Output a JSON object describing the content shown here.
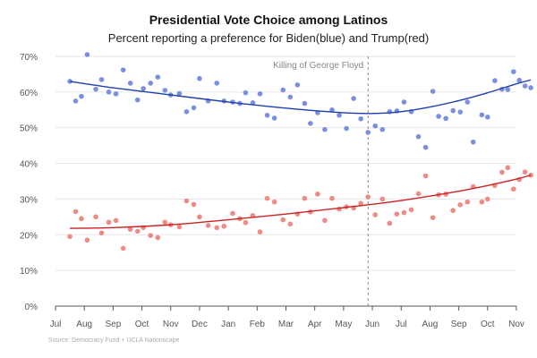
{
  "chart_data": {
    "type": "scatter",
    "title": "Presidential Vote Choice among Latinos",
    "subtitle": "Percent reporting a preference for Biden(blue) and Trump(red)",
    "source": "Source: Democracy Fund + UCLA Nationscape",
    "xlabel": "",
    "ylabel": "",
    "x_unit": "months since Jul 1, 2019",
    "xlim": [
      0,
      16
    ],
    "ylim": [
      0,
      70
    ],
    "x_ticks": [
      {
        "x": 0,
        "label": "Jul"
      },
      {
        "x": 1,
        "label": "Aug"
      },
      {
        "x": 2,
        "label": "Sep"
      },
      {
        "x": 3,
        "label": "Oct"
      },
      {
        "x": 4,
        "label": "Nov"
      },
      {
        "x": 5,
        "label": "Dec"
      },
      {
        "x": 6,
        "label": "Jan"
      },
      {
        "x": 7,
        "label": "Feb"
      },
      {
        "x": 8,
        "label": "Mar"
      },
      {
        "x": 9,
        "label": "Apr"
      },
      {
        "x": 10,
        "label": "May"
      },
      {
        "x": 11,
        "label": "Jun"
      },
      {
        "x": 12,
        "label": "Jul"
      },
      {
        "x": 13,
        "label": "Aug"
      },
      {
        "x": 14,
        "label": "Sep"
      },
      {
        "x": 15,
        "label": "Oct"
      },
      {
        "x": 16,
        "label": "Nov"
      }
    ],
    "y_ticks": [
      {
        "y": 0,
        "label": "0%"
      },
      {
        "y": 10,
        "label": "10%"
      },
      {
        "y": 20,
        "label": "20%"
      },
      {
        "y": 30,
        "label": "30%"
      },
      {
        "y": 40,
        "label": "40%"
      },
      {
        "y": 50,
        "label": "50%"
      },
      {
        "y": 60,
        "label": "60%"
      },
      {
        "y": 70,
        "label": "70%"
      }
    ],
    "grid": true,
    "annotation": {
      "x": 10.85,
      "label": "Killing of George Floyd"
    },
    "series": [
      {
        "name": "Biden",
        "color": "#7b8fe0",
        "trend_color": "#1f3fb0",
        "points": [
          [
            0.5,
            63
          ],
          [
            0.7,
            57.5
          ],
          [
            0.9,
            58.8
          ],
          [
            1.1,
            70.5
          ],
          [
            1.4,
            60.8
          ],
          [
            1.6,
            63.5
          ],
          [
            1.85,
            60
          ],
          [
            2.1,
            59.5
          ],
          [
            2.35,
            66.2
          ],
          [
            2.6,
            62.5
          ],
          [
            2.85,
            57.8
          ],
          [
            3.05,
            61
          ],
          [
            3.3,
            62.5
          ],
          [
            3.55,
            64.2
          ],
          [
            3.8,
            60.5
          ],
          [
            4.0,
            59.2
          ],
          [
            4.3,
            59.6
          ],
          [
            4.55,
            54.5
          ],
          [
            4.8,
            55.6
          ],
          [
            5.0,
            63.8
          ],
          [
            5.3,
            57.5
          ],
          [
            5.6,
            62.5
          ],
          [
            5.85,
            57.5
          ],
          [
            6.15,
            57.2
          ],
          [
            6.4,
            56.8
          ],
          [
            6.6,
            59.8
          ],
          [
            6.85,
            57
          ],
          [
            7.1,
            59.5
          ],
          [
            7.35,
            53.5
          ],
          [
            7.6,
            52.7
          ],
          [
            7.9,
            60.6
          ],
          [
            8.15,
            58.6
          ],
          [
            8.4,
            62
          ],
          [
            8.65,
            56.8
          ],
          [
            8.85,
            51.2
          ],
          [
            9.1,
            54.2
          ],
          [
            9.35,
            49.5
          ],
          [
            9.6,
            55
          ],
          [
            9.85,
            53.5
          ],
          [
            10.1,
            49.8
          ],
          [
            10.35,
            58.2
          ],
          [
            10.6,
            52.5
          ],
          [
            10.85,
            48.7
          ],
          [
            11.1,
            50.5
          ],
          [
            11.35,
            49.5
          ],
          [
            11.6,
            54.5
          ],
          [
            11.85,
            54.7
          ],
          [
            12.1,
            57.2
          ],
          [
            12.35,
            54.5
          ],
          [
            12.6,
            47.5
          ],
          [
            12.85,
            44.5
          ],
          [
            13.1,
            60.2
          ],
          [
            13.3,
            53.2
          ],
          [
            13.55,
            52.6
          ],
          [
            13.8,
            54.8
          ],
          [
            14.05,
            54.4
          ],
          [
            14.3,
            57.2
          ],
          [
            14.5,
            46
          ],
          [
            14.8,
            53.6
          ],
          [
            15.0,
            53
          ],
          [
            15.25,
            63.2
          ],
          [
            15.5,
            60.8
          ],
          [
            15.7,
            60.7
          ],
          [
            15.9,
            65.7
          ],
          [
            16.1,
            63.3
          ],
          [
            16.3,
            61.7
          ],
          [
            16.5,
            61.2
          ]
        ],
        "trend": [
          [
            0.5,
            63
          ],
          [
            2.0,
            61.2
          ],
          [
            4.0,
            59.2
          ],
          [
            6.0,
            57.2
          ],
          [
            8.0,
            55.5
          ],
          [
            10.0,
            54.2
          ],
          [
            11.0,
            54
          ],
          [
            12.0,
            54.5
          ],
          [
            13.0,
            55.8
          ],
          [
            14.0,
            57.6
          ],
          [
            15.0,
            59.8
          ],
          [
            16.0,
            62.3
          ],
          [
            16.5,
            63.4
          ]
        ]
      },
      {
        "name": "Trump",
        "color": "#ef8a85",
        "trend_color": "#cc2222",
        "points": [
          [
            0.5,
            19.5
          ],
          [
            0.7,
            26.5
          ],
          [
            0.9,
            24.5
          ],
          [
            1.1,
            18.5
          ],
          [
            1.4,
            25
          ],
          [
            1.6,
            20.5
          ],
          [
            1.85,
            23.5
          ],
          [
            2.1,
            24
          ],
          [
            2.35,
            16.2
          ],
          [
            2.6,
            21.5
          ],
          [
            2.85,
            21
          ],
          [
            3.05,
            22
          ],
          [
            3.3,
            19.8
          ],
          [
            3.55,
            19.2
          ],
          [
            3.8,
            23.5
          ],
          [
            4.0,
            22.8
          ],
          [
            4.3,
            22.2
          ],
          [
            4.55,
            29.5
          ],
          [
            4.8,
            28.5
          ],
          [
            5.0,
            25
          ],
          [
            5.3,
            22.6
          ],
          [
            5.6,
            22
          ],
          [
            5.85,
            22.4
          ],
          [
            6.15,
            26
          ],
          [
            6.4,
            24.5
          ],
          [
            6.6,
            23.4
          ],
          [
            6.85,
            25.4
          ],
          [
            7.1,
            20.8
          ],
          [
            7.35,
            30.2
          ],
          [
            7.6,
            29.2
          ],
          [
            7.9,
            24.2
          ],
          [
            8.15,
            23
          ],
          [
            8.4,
            25.8
          ],
          [
            8.65,
            30.2
          ],
          [
            8.85,
            26.4
          ],
          [
            9.1,
            31.4
          ],
          [
            9.35,
            24
          ],
          [
            9.6,
            30.2
          ],
          [
            9.85,
            27.2
          ],
          [
            10.1,
            27.8
          ],
          [
            10.35,
            27.5
          ],
          [
            10.6,
            28.8
          ],
          [
            10.85,
            30.6
          ],
          [
            11.1,
            25.6
          ],
          [
            11.35,
            30
          ],
          [
            11.6,
            23.2
          ],
          [
            11.85,
            25.8
          ],
          [
            12.1,
            26.2
          ],
          [
            12.35,
            27
          ],
          [
            12.6,
            31.5
          ],
          [
            12.85,
            36.5
          ],
          [
            13.1,
            24.8
          ],
          [
            13.3,
            31.2
          ],
          [
            13.55,
            31.4
          ],
          [
            13.8,
            26.8
          ],
          [
            14.05,
            28.4
          ],
          [
            14.3,
            29.2
          ],
          [
            14.5,
            33.5
          ],
          [
            14.8,
            29.2
          ],
          [
            15.0,
            30
          ],
          [
            15.25,
            33.8
          ],
          [
            15.5,
            37.5
          ],
          [
            15.7,
            38.8
          ],
          [
            15.9,
            32.8
          ],
          [
            16.1,
            35.5
          ],
          [
            16.3,
            37.6
          ],
          [
            16.5,
            36.7
          ]
        ],
        "trend": [
          [
            0.5,
            21.8
          ],
          [
            2.0,
            22
          ],
          [
            4.0,
            22.8
          ],
          [
            6.0,
            24.2
          ],
          [
            8.0,
            25.8
          ],
          [
            10.0,
            27.6
          ],
          [
            12.0,
            29.6
          ],
          [
            14.0,
            32.2
          ],
          [
            15.0,
            33.8
          ],
          [
            16.0,
            35.6
          ],
          [
            16.5,
            36.7
          ]
        ]
      }
    ]
  }
}
